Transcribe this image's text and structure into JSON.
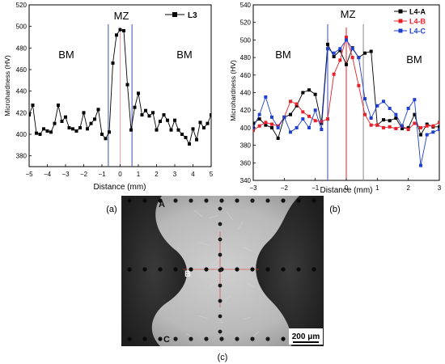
{
  "chart_data": [
    {
      "type": "line",
      "panel_label": "(a)",
      "xlabel": "Distance (mm)",
      "ylabel": "Microhardness (HV)",
      "xlim": [
        -5,
        5
      ],
      "ylim": [
        370,
        520
      ],
      "xticks": [
        -5,
        -4,
        -3,
        -2,
        -1,
        0,
        1,
        2,
        3,
        4,
        5
      ],
      "yticks": [
        380,
        400,
        420,
        440,
        460,
        480,
        500,
        520
      ],
      "regions": {
        "bm_left": "BM",
        "mz": "MZ",
        "bm_right": "BM"
      },
      "fusion_lines_x": [
        -0.65,
        0.65
      ],
      "center_line_x": 0,
      "legend_position": "top-right",
      "series": [
        {
          "name": "L3",
          "color": "#000000",
          "x": [
            -5.0,
            -4.8,
            -4.6,
            -4.4,
            -4.2,
            -4.0,
            -3.8,
            -3.6,
            -3.4,
            -3.2,
            -3.0,
            -2.8,
            -2.6,
            -2.4,
            -2.2,
            -2.0,
            -1.8,
            -1.6,
            -1.4,
            -1.2,
            -1.0,
            -0.8,
            -0.6,
            -0.4,
            -0.2,
            0.0,
            0.2,
            0.4,
            0.6,
            0.8,
            1.0,
            1.2,
            1.4,
            1.6,
            1.8,
            2.0,
            2.2,
            2.4,
            2.6,
            2.8,
            3.0,
            3.2,
            3.4,
            3.6,
            3.8,
            4.0,
            4.2,
            4.4,
            4.6,
            4.8,
            5.0
          ],
          "y": [
            418,
            427,
            401,
            400,
            405,
            403,
            402,
            410,
            427,
            412,
            416,
            406,
            405,
            403,
            406,
            420,
            405,
            410,
            414,
            423,
            400,
            396,
            402,
            466,
            492,
            497,
            496,
            446,
            404,
            425,
            438,
            418,
            422,
            417,
            420,
            404,
            412,
            418,
            413,
            404,
            413,
            404,
            400,
            397,
            391,
            405,
            395,
            411,
            406,
            410,
            418
          ]
        }
      ]
    },
    {
      "type": "line",
      "panel_label": "(b)",
      "xlabel": "Distance (mm)",
      "ylabel": "Microhardness (HV)",
      "xlim": [
        -3,
        3
      ],
      "ylim": [
        340,
        540
      ],
      "xticks": [
        -3,
        -2,
        -1,
        0,
        1,
        2,
        3
      ],
      "yticks": [
        340,
        360,
        380,
        400,
        420,
        440,
        460,
        480,
        500,
        520,
        540
      ],
      "regions": {
        "bm_left": "BM",
        "mz": "MZ",
        "bm_right": "BM"
      },
      "fusion_lines_x": [
        -0.6,
        0.55
      ],
      "center_line_x": 0,
      "legend_position": "top-right",
      "series": [
        {
          "name": "L4-A",
          "color": "#000000",
          "x": [
            -3.0,
            -2.8,
            -2.6,
            -2.4,
            -2.2,
            -2.0,
            -1.8,
            -1.6,
            -1.4,
            -1.2,
            -1.0,
            -0.8,
            -0.6,
            -0.4,
            -0.2,
            0.0,
            0.2,
            0.4,
            0.6,
            0.8,
            1.0,
            1.2,
            1.4,
            1.6,
            1.8,
            2.0,
            2.2,
            2.4,
            2.6,
            2.8,
            3.0
          ],
          "x_note": "",
          "y": [
            405,
            410,
            403,
            400,
            388,
            412,
            415,
            425,
            440,
            443,
            438,
            405,
            495,
            481,
            488,
            472,
            491,
            480,
            485,
            487,
            403,
            409,
            408,
            411,
            399,
            400,
            415,
            392,
            404,
            401,
            401
          ]
        },
        {
          "name": "L4-B",
          "color": "#e8202a",
          "x": [
            -3.0,
            -2.8,
            -2.6,
            -2.4,
            -2.2,
            -2.0,
            -1.8,
            -1.6,
            -1.4,
            -1.2,
            -1.0,
            -0.8,
            -0.6,
            -0.4,
            -0.2,
            0.0,
            0.2,
            0.4,
            0.6,
            0.8,
            1.0,
            1.2,
            1.4,
            1.6,
            1.8,
            2.0,
            2.2,
            2.4,
            2.6,
            2.8,
            3.0
          ],
          "y": [
            397,
            402,
            406,
            404,
            402,
            412,
            430,
            427,
            418,
            413,
            408,
            407,
            410,
            461,
            477,
            503,
            480,
            448,
            415,
            403,
            403,
            400,
            401,
            399,
            402,
            398,
            405,
            400,
            402,
            402,
            406
          ]
        },
        {
          "name": "L4-C",
          "color": "#1f3fcf",
          "x": [
            -3.0,
            -2.8,
            -2.6,
            -2.4,
            -2.2,
            -2.0,
            -1.8,
            -1.6,
            -1.4,
            -1.2,
            -1.0,
            -0.8,
            -0.6,
            -0.4,
            -0.2,
            0.0,
            0.2,
            0.4,
            0.6,
            0.8,
            1.0,
            1.2,
            1.4,
            1.6,
            1.8,
            2.0,
            2.2,
            2.4,
            2.6,
            2.8,
            3.0
          ],
          "y": [
            400,
            415,
            435,
            412,
            400,
            412,
            395,
            400,
            410,
            400,
            420,
            398,
            490,
            485,
            490,
            500,
            490,
            480,
            433,
            411,
            425,
            430,
            422,
            415,
            402,
            422,
            432,
            357,
            392,
            395,
            398
          ]
        }
      ]
    }
  ],
  "micrograph": {
    "panel_label": "(c)",
    "point_labels": [
      "A",
      "B",
      "C"
    ],
    "scale_bar_text": "200 μm"
  }
}
